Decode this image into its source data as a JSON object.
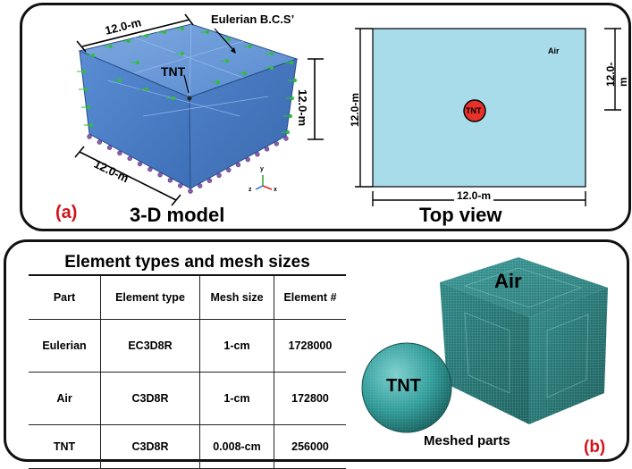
{
  "panel_a": {
    "label": "(a)",
    "model_caption": "3-D model",
    "top_caption": "Top view",
    "bcs_label": "Eulerian B.C.S’",
    "tnt_label": "TNT",
    "dim_top": "12.0-m",
    "dim_right": "12.0-m",
    "dim_bottom": "12.0-m",
    "top_view": {
      "air_label": "Air",
      "tnt_label": "TNT",
      "dim_left": "12.0-m",
      "dim_right": "12.0-m",
      "dim_bottom": "12.0-m"
    },
    "axes": {
      "x": "x",
      "y": "y",
      "z": "z"
    }
  },
  "panel_b": {
    "label": "(b)",
    "table_title": "Element types and mesh sizes",
    "columns": [
      "Part",
      "Element type",
      "Mesh size",
      "Element #"
    ],
    "rows": [
      [
        "Eulerian",
        "EC3D8R",
        "1-cm",
        "1728000"
      ],
      [
        "Air",
        "C3D8R",
        "1-cm",
        "172800"
      ],
      [
        "TNT",
        "C3D8R",
        "0.008-cm",
        "256000"
      ]
    ],
    "air_cube_label": "Air",
    "tnt_sphere_label": "TNT",
    "meshed_caption": "Meshed parts"
  },
  "colors": {
    "cube_blue": "#4a7fc9",
    "sky": "#a9dcea",
    "tnt_red": "#e8312a",
    "label_red": "#d4141b",
    "mesh_teal": "#2f8a88"
  }
}
